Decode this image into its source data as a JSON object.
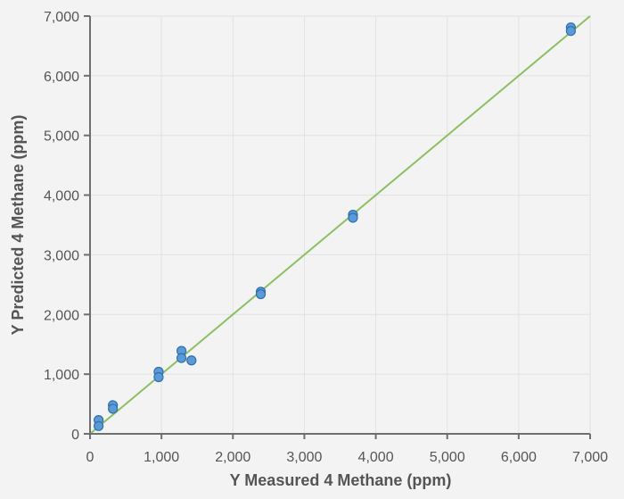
{
  "chart_data": {
    "type": "scatter",
    "title": "",
    "xlabel": "Y Measured 4 Methane (ppm)",
    "ylabel": "Y Predicted 4 Methane (ppm)",
    "xlim": [
      0,
      7000
    ],
    "ylim": [
      0,
      7000
    ],
    "x_ticks": [
      0,
      1000,
      2000,
      3000,
      4000,
      5000,
      6000,
      7000
    ],
    "y_ticks": [
      0,
      1000,
      2000,
      3000,
      4000,
      5000,
      6000,
      7000
    ],
    "x_tick_labels": [
      "0",
      "1,000",
      "2,000",
      "3,000",
      "4,000",
      "5,000",
      "6,000",
      "7,000"
    ],
    "y_tick_labels": [
      "0",
      "1,000",
      "2,000",
      "3,000",
      "4,000",
      "5,000",
      "6,000",
      "7,000"
    ],
    "grid": true,
    "series": [
      {
        "type": "scatter",
        "color": "#5b9bd5",
        "points": [
          {
            "x": 120,
            "y": 230
          },
          {
            "x": 120,
            "y": 130
          },
          {
            "x": 320,
            "y": 480
          },
          {
            "x": 320,
            "y": 420
          },
          {
            "x": 960,
            "y": 1040
          },
          {
            "x": 960,
            "y": 950
          },
          {
            "x": 1280,
            "y": 1390
          },
          {
            "x": 1280,
            "y": 1270
          },
          {
            "x": 1420,
            "y": 1230
          },
          {
            "x": 2390,
            "y": 2380
          },
          {
            "x": 2390,
            "y": 2340
          },
          {
            "x": 3680,
            "y": 3670
          },
          {
            "x": 3680,
            "y": 3620
          },
          {
            "x": 6730,
            "y": 6810
          },
          {
            "x": 6730,
            "y": 6750
          }
        ]
      },
      {
        "type": "line",
        "color": "#8cc063",
        "points": [
          {
            "x": 0,
            "y": 0
          },
          {
            "x": 7000,
            "y": 7000
          }
        ]
      }
    ]
  }
}
